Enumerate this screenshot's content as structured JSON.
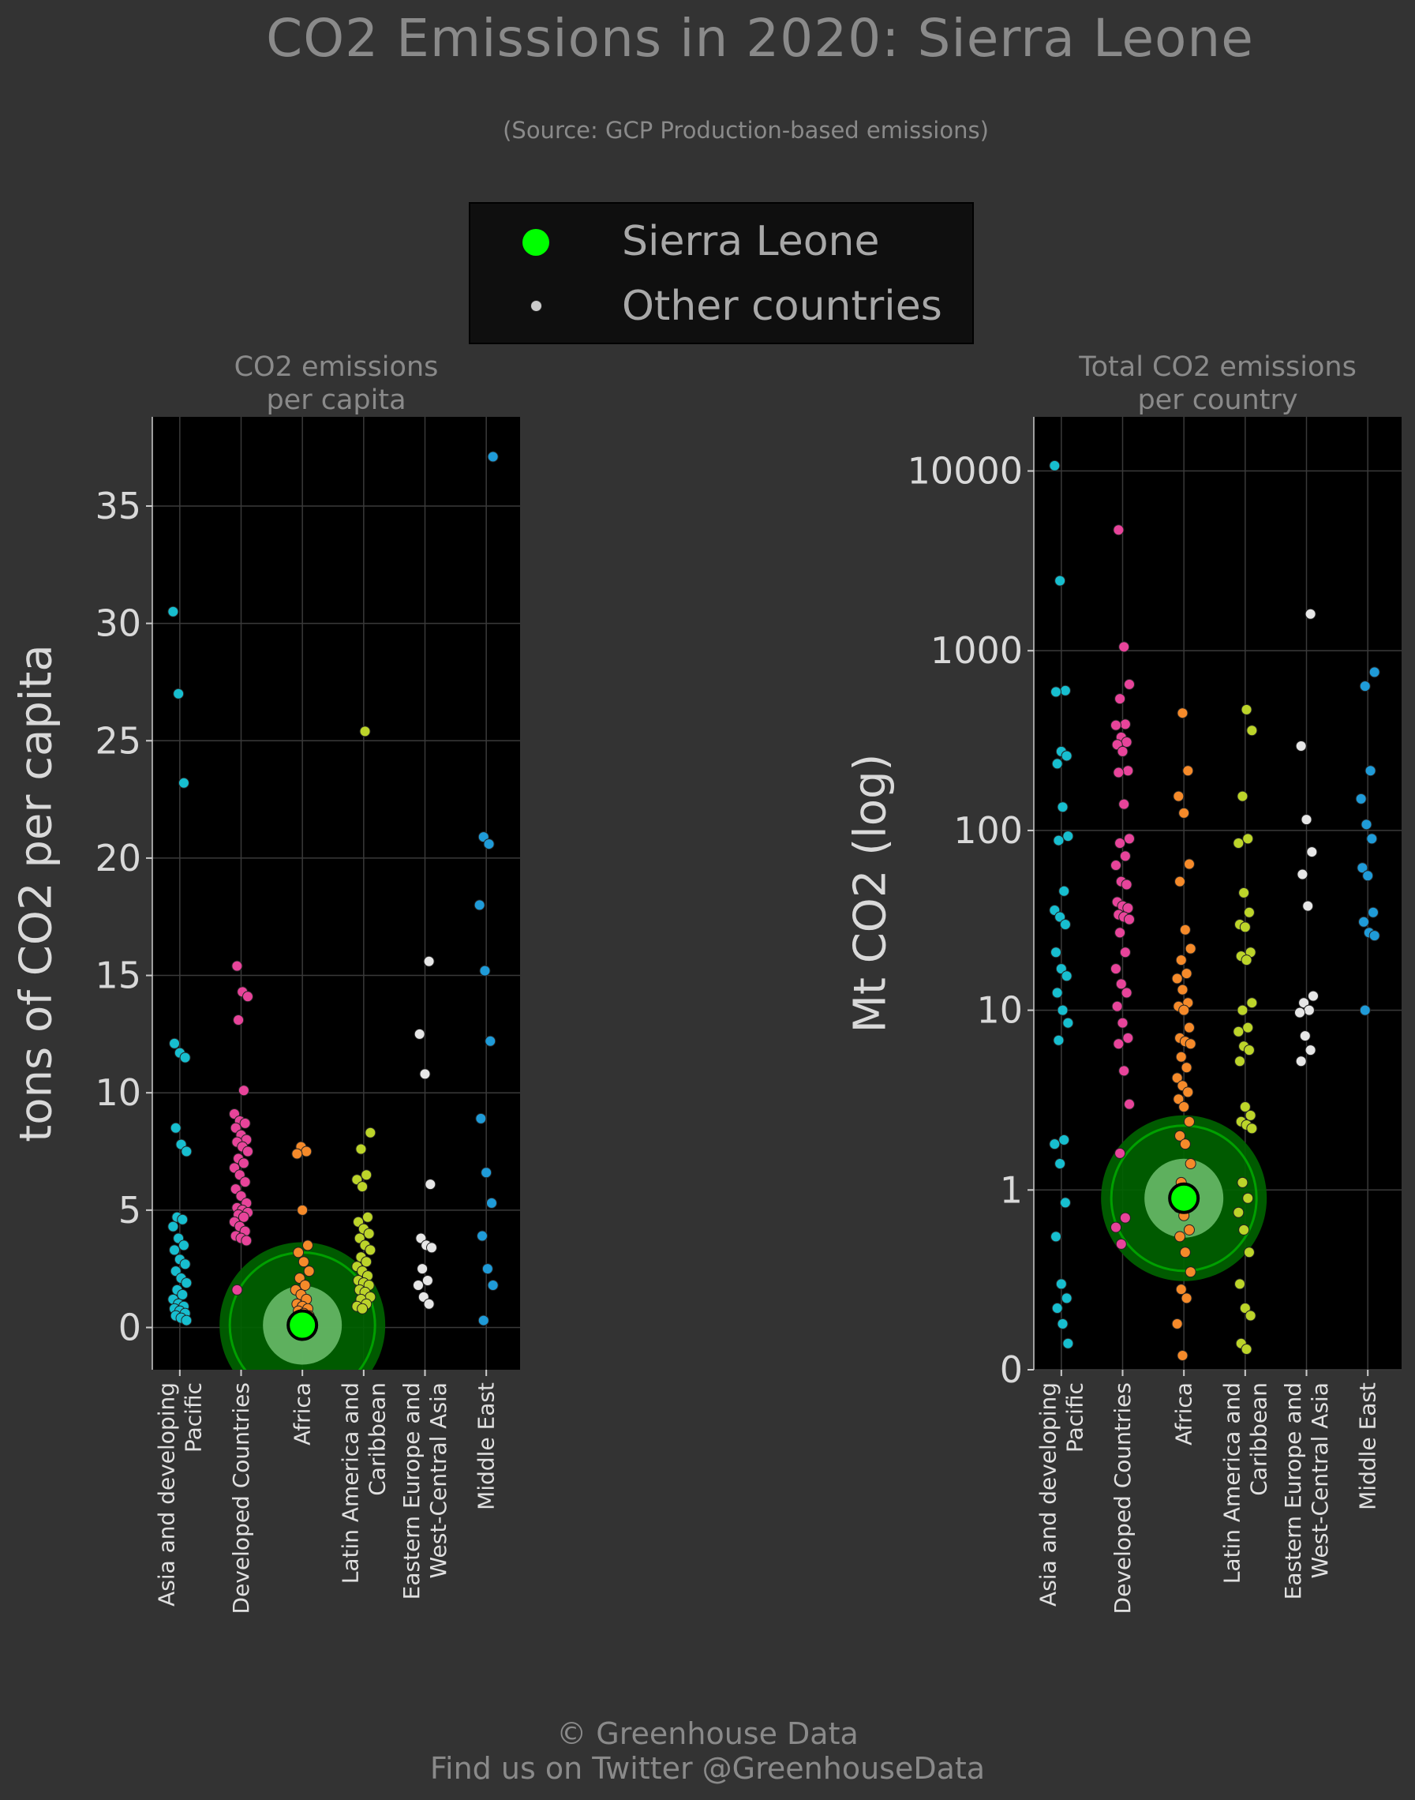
{
  "title": "CO2 Emissions in 2020: Sierra Leone",
  "subtitle": "(Source: GCP Production-based emissions)",
  "legend": {
    "highlight_label": "Sierra Leone",
    "others_label": "Other countries"
  },
  "footer": {
    "copyright": "© Greenhouse Data",
    "twitter": "Find us on Twitter @GreenhouseData"
  },
  "colors": {
    "background": "#333333",
    "plot_bg": "#000000",
    "highlight": "#00ff00",
    "Asia and developing Pacific": "#17becf",
    "Developed Countries": "#e7449a",
    "Africa": "#f58a2a",
    "Latin America and Caribbean": "#bcd42a",
    "Eastern Europe and West-Central Asia": "#e6e6e6",
    "Middle East": "#1f9bd8"
  },
  "chart_data": [
    {
      "type": "scatter",
      "title": "CO2 emissions\nper capita",
      "ylabel": "tons of CO2 per capita",
      "yscale": "linear",
      "ylim": [
        -1.8,
        38.8
      ],
      "yticks": [
        0,
        5,
        10,
        15,
        20,
        25,
        30,
        35
      ],
      "grid": true,
      "categories": [
        "Asia and developing\nPacific",
        "Developed Countries",
        "Africa",
        "Latin America and\nCaribbean",
        "Eastern Europe and\nWest-Central Asia",
        "Middle East"
      ],
      "highlight": {
        "category": "Africa",
        "value": 0.1
      },
      "series": [
        {
          "category": "Asia and developing\nPacific",
          "values": [
            30.5,
            27.0,
            23.2,
            12.1,
            11.7,
            11.5,
            8.5,
            7.8,
            7.5,
            4.7,
            4.6,
            4.3,
            3.8,
            3.5,
            3.3,
            2.9,
            2.7,
            2.4,
            2.1,
            1.9,
            1.6,
            1.4,
            1.2,
            1.0,
            0.9,
            0.8,
            0.7,
            0.6,
            0.5,
            0.4,
            0.3
          ]
        },
        {
          "category": "Developed Countries",
          "values": [
            15.4,
            14.3,
            14.1,
            13.1,
            10.1,
            9.1,
            8.8,
            8.7,
            8.5,
            8.2,
            8.0,
            7.9,
            7.7,
            7.5,
            7.2,
            7.0,
            6.8,
            6.5,
            6.2,
            5.9,
            5.6,
            5.3,
            5.1,
            5.0,
            4.9,
            4.8,
            4.7,
            4.5,
            4.3,
            4.1,
            3.9,
            3.8,
            3.7,
            1.6
          ]
        },
        {
          "category": "Africa",
          "values": [
            7.7,
            7.5,
            7.4,
            5.0,
            3.5,
            3.2,
            2.8,
            2.4,
            2.1,
            1.8,
            1.6,
            1.4,
            1.2,
            1.0,
            0.9,
            0.8,
            0.7,
            0.6,
            0.5,
            0.4,
            0.35,
            0.3,
            0.25,
            0.2,
            0.15,
            0.1,
            0.08,
            0.06,
            0.05,
            0.04
          ]
        },
        {
          "category": "Latin America and\nCaribbean",
          "values": [
            25.4,
            8.3,
            7.6,
            6.5,
            6.3,
            6.0,
            4.7,
            4.5,
            4.2,
            4.0,
            3.8,
            3.5,
            3.3,
            3.0,
            2.8,
            2.6,
            2.4,
            2.2,
            2.0,
            1.9,
            1.8,
            1.6,
            1.5,
            1.3,
            1.2,
            1.0,
            0.9,
            0.8
          ]
        },
        {
          "category": "Eastern Europe and\nWest-Central Asia",
          "values": [
            15.6,
            12.5,
            10.8,
            6.1,
            3.8,
            3.5,
            3.4,
            2.5,
            2.0,
            1.8,
            1.3,
            1.0
          ]
        },
        {
          "category": "Middle East",
          "values": [
            37.1,
            20.9,
            20.6,
            18.0,
            15.2,
            12.2,
            8.9,
            6.6,
            5.3,
            3.9,
            2.5,
            1.8,
            0.3
          ]
        }
      ]
    },
    {
      "type": "scatter",
      "title": "Total CO2 emissions\nper country",
      "ylabel": "Mt CO2 (log)",
      "yscale": "log",
      "ylim": [
        0,
        20000
      ],
      "yticks": [
        0,
        1,
        10,
        100,
        1000,
        10000
      ],
      "grid": true,
      "categories": [
        "Asia and developing\nPacific",
        "Developed Countries",
        "Africa",
        "Latin America and\nCaribbean",
        "Eastern Europe and\nWest-Central Asia",
        "Middle East"
      ],
      "highlight": {
        "category": "Africa",
        "value": 0.9
      },
      "series": [
        {
          "category": "Asia and developing\nPacific",
          "values": [
            10700,
            2450,
            600,
            590,
            275,
            260,
            235,
            135,
            93,
            88,
            46,
            36,
            33,
            30,
            21,
            17,
            15.5,
            12.5,
            10,
            8.5,
            6.8,
            1.9,
            1.8,
            1.4,
            0.85,
            0.55,
            0.3,
            0.25,
            0.22,
            0.18,
            0.14
          ]
        },
        {
          "category": "Developed Countries",
          "values": [
            4700,
            1050,
            650,
            540,
            390,
            385,
            330,
            310,
            300,
            275,
            215,
            210,
            140,
            90,
            85,
            72,
            64,
            52,
            50,
            40,
            38,
            37,
            34,
            33,
            32,
            27,
            21,
            17,
            14,
            12.5,
            10.5,
            8.5,
            7,
            6.5,
            4.6,
            3.0,
            1.6,
            0.7,
            0.62,
            0.5
          ]
        },
        {
          "category": "Africa",
          "values": [
            450,
            215,
            155,
            125,
            65,
            52,
            28,
            22,
            19,
            16,
            15,
            13,
            11,
            10.5,
            10,
            8,
            7,
            6.7,
            6.5,
            5.5,
            4.8,
            4.2,
            3.8,
            3.5,
            3.2,
            2.9,
            2.4,
            2.0,
            1.8,
            1.4,
            1.1,
            1.0,
            0.95,
            0.9,
            0.85,
            0.8,
            0.72,
            0.6,
            0.55,
            0.45,
            0.35,
            0.28,
            0.25,
            0.18,
            0.12
          ]
        },
        {
          "category": "Latin America and\nCaribbean",
          "values": [
            470,
            360,
            155,
            90,
            85,
            45,
            35,
            30,
            29,
            21,
            20,
            19,
            11,
            10,
            8,
            7.6,
            6.3,
            6.0,
            5.2,
            2.9,
            2.6,
            2.4,
            2.3,
            2.2,
            1.1,
            0.9,
            0.75,
            0.6,
            0.45,
            0.3,
            0.22,
            0.2,
            0.14,
            0.13
          ]
        },
        {
          "category": "Eastern Europe and\nWest-Central Asia",
          "values": [
            1600,
            295,
            115,
            76,
            57,
            38,
            12,
            11,
            10,
            9.7,
            7.2,
            6,
            5.2
          ]
        },
        {
          "category": "Middle East",
          "values": [
            760,
            635,
            215,
            150,
            108,
            90,
            62,
            56,
            35,
            31,
            27,
            26,
            10
          ]
        }
      ]
    }
  ]
}
